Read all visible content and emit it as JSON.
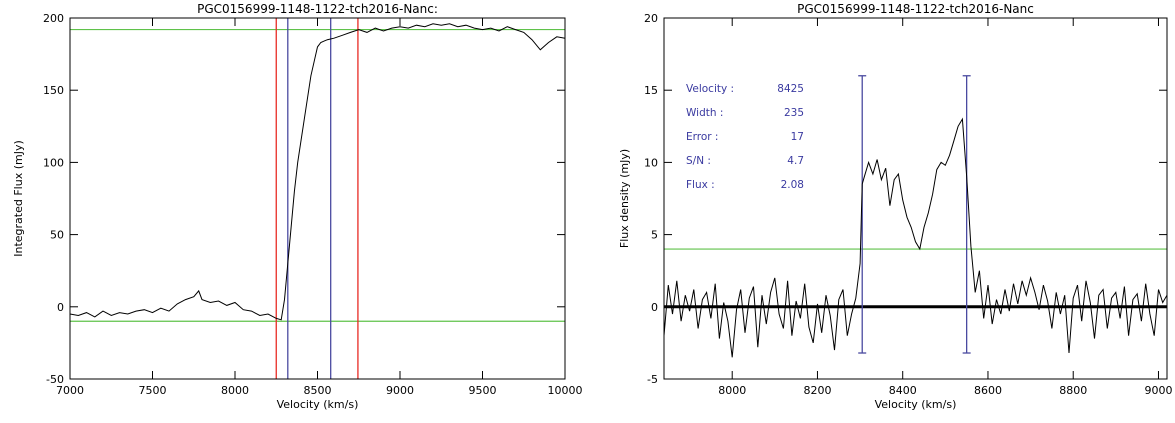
{
  "chart_data": [
    {
      "type": "line",
      "title": "PGC0156999-1148-1122-tch2016-Nanc:",
      "xlabel": "Velocity (km/s)",
      "ylabel": "Integrated Flux (mJy)",
      "xlim": [
        7000,
        10000
      ],
      "ylim": [
        -50,
        200
      ],
      "xticks": [
        "7000",
        "7500",
        "8000",
        "8500",
        "9000",
        "9500",
        "10000"
      ],
      "yticks": [
        "-50",
        "0",
        "50",
        "100",
        "150",
        "200"
      ],
      "series": [
        {
          "x": [
            7000,
            7050,
            7100,
            7150,
            7200,
            7250,
            7300,
            7350,
            7400,
            7450,
            7500,
            7550,
            7600,
            7650,
            7700,
            7750,
            7780,
            7800,
            7850,
            7900,
            7950,
            8000,
            8050,
            8100,
            8150,
            8200,
            8250,
            8280,
            8300,
            8320,
            8340,
            8360,
            8380,
            8400,
            8420,
            8440,
            8460,
            8480,
            8500,
            8520,
            8540,
            8560,
            8600,
            8650,
            8700,
            8750,
            8800,
            8850,
            8900,
            8950,
            9000,
            9050,
            9100,
            9150,
            9200,
            9250,
            9300,
            9350,
            9400,
            9450,
            9500,
            9550,
            9600,
            9650,
            9700,
            9750,
            9800,
            9850,
            9900,
            9950,
            10000
          ],
          "y": [
            -5,
            -6,
            -4,
            -7,
            -3,
            -6,
            -4,
            -5,
            -3,
            -2,
            -4,
            -1,
            -3,
            2,
            5,
            7,
            11,
            5,
            3,
            4,
            1,
            3,
            -2,
            -3,
            -6,
            -5,
            -8,
            -9,
            5,
            30,
            55,
            80,
            100,
            115,
            130,
            145,
            160,
            170,
            180,
            183,
            184,
            185,
            186,
            188,
            190,
            192,
            190,
            193,
            191,
            193,
            194,
            193,
            195,
            194,
            196,
            195,
            196,
            194,
            195,
            193,
            192,
            193,
            191,
            194,
            192,
            190,
            185,
            178,
            183,
            187,
            186
          ]
        }
      ],
      "hlines": [
        {
          "y": 192,
          "color": "#5fc24a"
        },
        {
          "y": -10,
          "color": "#5fc24a"
        }
      ],
      "vlines": [
        {
          "x": 8250,
          "color": "#e82b24"
        },
        {
          "x": 8745,
          "color": "#e82b24"
        },
        {
          "x": 8320,
          "color": "#4a4aa0"
        },
        {
          "x": 8580,
          "color": "#4a4aa0"
        }
      ]
    },
    {
      "type": "line",
      "title": "PGC0156999-1148-1122-tch2016-Nanc",
      "xlabel": "Velocity (km/s)",
      "ylabel": "Flux density (mJy)",
      "xlim": [
        7840,
        9020
      ],
      "ylim": [
        -5,
        20
      ],
      "xticks": [
        "8000",
        "8200",
        "8400",
        "8600",
        "8800",
        "9000"
      ],
      "yticks": [
        "-5",
        "0",
        "5",
        "10",
        "15",
        "20"
      ],
      "series": [
        {
          "x": [
            7840,
            7850,
            7860,
            7870,
            7880,
            7890,
            7900,
            7910,
            7920,
            7930,
            7940,
            7950,
            7960,
            7970,
            7980,
            7990,
            8000,
            8010,
            8020,
            8030,
            8040,
            8050,
            8060,
            8070,
            8080,
            8090,
            8100,
            8110,
            8120,
            8130,
            8140,
            8150,
            8160,
            8170,
            8180,
            8190,
            8200,
            8210,
            8220,
            8230,
            8240,
            8250,
            8260,
            8270,
            8280,
            8290,
            8300,
            8305,
            8310,
            8320,
            8330,
            8340,
            8350,
            8360,
            8370,
            8380,
            8390,
            8400,
            8410,
            8420,
            8430,
            8440,
            8450,
            8460,
            8470,
            8480,
            8490,
            8500,
            8510,
            8520,
            8530,
            8540,
            8550,
            8560,
            8570,
            8580,
            8590,
            8600,
            8610,
            8620,
            8630,
            8640,
            8650,
            8660,
            8670,
            8680,
            8690,
            8700,
            8710,
            8720,
            8730,
            8740,
            8750,
            8760,
            8770,
            8780,
            8790,
            8800,
            8810,
            8820,
            8830,
            8840,
            8850,
            8860,
            8870,
            8880,
            8890,
            8900,
            8910,
            8920,
            8930,
            8940,
            8950,
            8960,
            8970,
            8980,
            8990,
            9000,
            9010,
            9020
          ],
          "y": [
            -2.0,
            1.5,
            -0.5,
            1.8,
            -1.0,
            0.8,
            -0.3,
            1.2,
            -1.5,
            0.5,
            1.0,
            -0.8,
            1.6,
            -2.2,
            0.3,
            -1.0,
            -3.5,
            -0.2,
            1.2,
            -1.8,
            0.6,
            1.4,
            -2.8,
            0.8,
            -1.2,
            1.0,
            2.0,
            -0.5,
            -1.5,
            1.8,
            -2.0,
            0.4,
            -0.8,
            1.6,
            -1.4,
            -2.5,
            0.2,
            -1.8,
            0.8,
            -0.6,
            -3.0,
            0.5,
            1.2,
            -2.0,
            -0.5,
            0.6,
            3.0,
            8.5,
            9.0,
            10.0,
            9.2,
            10.2,
            8.8,
            9.6,
            7.0,
            8.8,
            9.2,
            7.4,
            6.2,
            5.5,
            4.5,
            4.0,
            5.5,
            6.5,
            7.8,
            9.5,
            10.0,
            9.8,
            10.5,
            11.5,
            12.5,
            13.0,
            9.0,
            4.2,
            1.0,
            2.5,
            -0.8,
            1.5,
            -1.2,
            0.5,
            -0.5,
            1.2,
            -0.3,
            1.6,
            0.2,
            1.8,
            0.8,
            2.0,
            1.0,
            -0.2,
            1.5,
            0.4,
            -1.5,
            1.0,
            -0.5,
            0.8,
            -3.2,
            0.6,
            1.5,
            -1.0,
            1.8,
            0.3,
            -2.2,
            0.8,
            1.2,
            -1.5,
            0.6,
            1.0,
            -0.8,
            1.4,
            -2.0,
            0.5,
            0.9,
            -1.0,
            1.6,
            -0.5,
            -2.0,
            1.2,
            0.3,
            0.8
          ]
        }
      ],
      "hlines": [
        {
          "y": 4,
          "color": "#5fc24a"
        },
        {
          "y": 0,
          "color": "#000000"
        }
      ],
      "vlines": [
        {
          "x": 8305,
          "y0": -3.2,
          "y1": 16,
          "color": "#4a4aa0"
        },
        {
          "x": 8550,
          "y0": -3.2,
          "y1": 16,
          "color": "#4a4aa0"
        }
      ],
      "annotations": [
        {
          "label": "Velocity :",
          "value": "8425"
        },
        {
          "label": "Width :",
          "value": "235"
        },
        {
          "label": "Error :",
          "value": "17"
        },
        {
          "label": "S/N :",
          "value": "4.7"
        },
        {
          "label": "Flux :",
          "value": "2.08"
        }
      ]
    }
  ]
}
